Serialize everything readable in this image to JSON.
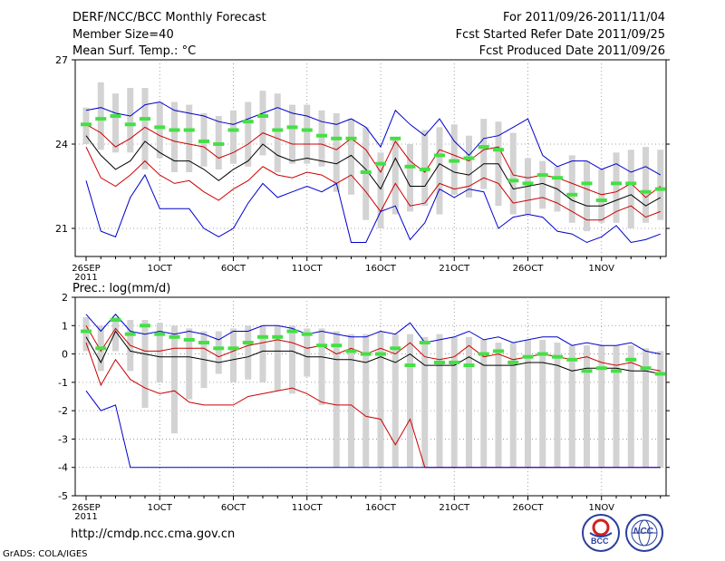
{
  "header": {
    "title": "DERF/NCC/BCC Monthly Forecast",
    "member_size": "Member Size=40",
    "variable": "Mean Surf. Temp.: °C",
    "period": "For 2011/09/26-2011/11/04",
    "fcst_started": "Fcst Started Refer Date 2011/09/25",
    "fcst_produced": "Fcst Produced Date 2011/09/26"
  },
  "footer": {
    "url": "http://cmdp.ncc.cma.gov.cn",
    "grads": "GrADS: COLA/IGES"
  },
  "logos": {
    "bcc": "BCC",
    "ncc": "NCC"
  },
  "colors": {
    "box": "#d3d3d3",
    "median": "#44e044",
    "mean": "#000000",
    "std_band": "#cc0000",
    "extreme": "#0000cc",
    "grid": "#888888"
  },
  "chart_data": [
    {
      "type": "line",
      "panel": "temperature",
      "title": "Mean Surf. Temp.: °C",
      "ylabel": "°C",
      "ylim": [
        20,
        27
      ],
      "yticks": [
        21,
        24,
        27
      ],
      "xlabels": [
        "26SEP",
        "1OCT",
        "6OCT",
        "11OCT",
        "16OCT",
        "21OCT",
        "26OCT",
        "1NOV"
      ],
      "xlabel_year": "2011",
      "days": 40,
      "series": [
        {
          "name": "max",
          "color": "#0000cc",
          "values": [
            25.2,
            25.3,
            25.1,
            25.0,
            25.4,
            25.5,
            25.2,
            25.1,
            25.0,
            24.8,
            24.7,
            24.9,
            25.1,
            25.3,
            25.1,
            25.0,
            24.8,
            24.7,
            24.9,
            24.6,
            23.9,
            25.2,
            24.7,
            24.3,
            24.9,
            24.1,
            23.6,
            24.2,
            24.3,
            24.6,
            24.9,
            23.6,
            23.2,
            23.4,
            23.4,
            23.1,
            23.3,
            23.0,
            23.2,
            22.9
          ]
        },
        {
          "name": "mean_plus_std",
          "color": "#cc0000",
          "values": [
            24.7,
            24.4,
            23.9,
            24.2,
            24.6,
            24.3,
            24.1,
            24.0,
            23.9,
            23.5,
            23.7,
            24.0,
            24.4,
            24.2,
            24.0,
            24.0,
            24.0,
            23.8,
            24.2,
            23.8,
            23.0,
            24.1,
            23.4,
            23.0,
            23.8,
            23.6,
            23.4,
            23.8,
            23.9,
            22.9,
            22.8,
            22.9,
            22.8,
            22.6,
            22.4,
            22.2,
            22.3,
            22.6,
            22.1,
            22.5
          ]
        },
        {
          "name": "mean",
          "color": "#000000",
          "values": [
            24.3,
            23.6,
            23.1,
            23.4,
            24.1,
            23.7,
            23.4,
            23.4,
            23.1,
            22.7,
            23.1,
            23.4,
            24.0,
            23.6,
            23.4,
            23.5,
            23.4,
            23.3,
            23.6,
            23.1,
            22.4,
            23.5,
            22.5,
            22.5,
            23.3,
            23.0,
            22.9,
            23.3,
            23.3,
            22.4,
            22.5,
            22.6,
            22.4,
            22.0,
            21.8,
            21.8,
            22.0,
            22.2,
            21.8,
            22.1
          ]
        },
        {
          "name": "mean_minus_std",
          "color": "#cc0000",
          "values": [
            23.9,
            22.8,
            22.5,
            22.9,
            23.4,
            22.9,
            22.6,
            22.7,
            22.3,
            22.0,
            22.4,
            22.7,
            23.2,
            22.9,
            22.8,
            23.0,
            22.9,
            22.6,
            22.9,
            22.3,
            21.6,
            22.6,
            21.8,
            21.9,
            22.6,
            22.4,
            22.5,
            22.8,
            22.6,
            21.9,
            22.0,
            22.1,
            21.9,
            21.6,
            21.3,
            21.3,
            21.6,
            21.8,
            21.4,
            21.6
          ]
        },
        {
          "name": "min",
          "color": "#0000cc",
          "values": [
            22.7,
            20.9,
            20.7,
            22.1,
            22.9,
            21.7,
            21.7,
            21.7,
            21.0,
            20.7,
            21.0,
            21.9,
            22.6,
            22.1,
            22.3,
            22.5,
            22.3,
            22.6,
            20.5,
            20.5,
            21.6,
            21.8,
            20.6,
            21.2,
            22.4,
            22.1,
            22.4,
            22.3,
            21.0,
            21.4,
            21.5,
            21.4,
            20.9,
            20.8,
            20.5,
            20.7,
            21.1,
            20.5,
            20.6,
            20.8
          ]
        },
        {
          "name": "median",
          "color": "#44e044",
          "values": [
            24.7,
            24.9,
            25.0,
            24.7,
            24.9,
            24.6,
            24.5,
            24.5,
            24.1,
            24.0,
            24.5,
            24.8,
            25.0,
            24.5,
            24.6,
            24.5,
            24.3,
            24.2,
            24.2,
            23.0,
            23.3,
            24.2,
            23.2,
            23.1,
            23.6,
            23.4,
            23.5,
            23.9,
            23.8,
            22.7,
            22.6,
            22.9,
            22.8,
            22.2,
            22.6,
            22.0,
            22.6,
            22.6,
            22.3,
            22.4
          ]
        }
      ],
      "boxes": {
        "upper": [
          25.3,
          26.2,
          25.8,
          26.0,
          26.0,
          25.5,
          25.5,
          25.4,
          25.1,
          25.0,
          25.2,
          25.5,
          25.9,
          25.8,
          25.4,
          25.4,
          25.2,
          25.1,
          24.9,
          24.6,
          23.7,
          24.2,
          24.0,
          24.5,
          24.6,
          24.7,
          24.3,
          24.9,
          24.8,
          24.4,
          23.5,
          23.4,
          23.2,
          23.6,
          23.4,
          23.1,
          23.7,
          23.8,
          23.9,
          23.8
        ],
        "lower": [
          24.0,
          23.8,
          23.7,
          23.7,
          23.1,
          23.5,
          23.0,
          23.0,
          23.2,
          23.1,
          23.3,
          23.2,
          23.6,
          23.0,
          23.3,
          23.3,
          23.2,
          22.3,
          22.2,
          21.3,
          21.0,
          21.5,
          21.6,
          21.8,
          21.5,
          22.2,
          22.1,
          22.4,
          21.8,
          21.5,
          21.5,
          21.7,
          21.6,
          21.2,
          20.9,
          21.2,
          21.2,
          21.0,
          21.2,
          21.3
        ]
      }
    },
    {
      "type": "line",
      "panel": "precipitation",
      "title": "Prec.: log(mm/d)",
      "ylabel": "log(mm/d)",
      "ylim": [
        -5,
        2
      ],
      "yticks": [
        -5,
        -4,
        -3,
        -2,
        -1,
        0,
        1,
        2
      ],
      "xlabels": [
        "26SEP",
        "1OCT",
        "6OCT",
        "11OCT",
        "16OCT",
        "21OCT",
        "26OCT",
        "1NOV"
      ],
      "xlabel_year": "2011",
      "days": 40,
      "series": [
        {
          "name": "max",
          "color": "#0000cc",
          "values": [
            1.4,
            0.8,
            1.4,
            0.8,
            0.7,
            0.8,
            0.7,
            0.8,
            0.7,
            0.5,
            0.8,
            0.8,
            1.0,
            1.0,
            0.9,
            0.7,
            0.8,
            0.7,
            0.6,
            0.6,
            0.8,
            0.7,
            1.1,
            0.4,
            0.5,
            0.6,
            0.8,
            0.5,
            0.6,
            0.4,
            0.5,
            0.6,
            0.6,
            0.3,
            0.4,
            0.3,
            0.3,
            0.4,
            0.1,
            0.0
          ]
        },
        {
          "name": "mean_plus_std",
          "color": "#cc0000",
          "values": [
            1.0,
            0.1,
            0.9,
            0.3,
            0.1,
            0.1,
            0.2,
            0.2,
            0.2,
            -0.1,
            0.1,
            0.3,
            0.4,
            0.5,
            0.4,
            0.2,
            0.3,
            0.0,
            0.2,
            0.0,
            0.2,
            0.0,
            0.4,
            -0.1,
            -0.2,
            -0.1,
            0.3,
            -0.1,
            0.0,
            -0.2,
            -0.1,
            0.0,
            -0.1,
            -0.2,
            -0.1,
            -0.3,
            -0.4,
            -0.3,
            -0.5,
            -0.6
          ]
        },
        {
          "name": "mean",
          "color": "#000000",
          "values": [
            0.6,
            -0.3,
            0.8,
            0.1,
            0.0,
            -0.1,
            -0.1,
            -0.1,
            -0.2,
            -0.3,
            -0.2,
            -0.1,
            0.1,
            0.1,
            0.1,
            -0.1,
            -0.1,
            -0.2,
            -0.2,
            -0.3,
            -0.1,
            -0.3,
            0.0,
            -0.4,
            -0.4,
            -0.4,
            -0.1,
            -0.4,
            -0.4,
            -0.4,
            -0.3,
            -0.3,
            -0.4,
            -0.6,
            -0.5,
            -0.5,
            -0.5,
            -0.6,
            -0.6,
            -0.7
          ]
        },
        {
          "name": "mean_minus_std",
          "color": "#cc0000",
          "values": [
            0.4,
            -1.1,
            -0.2,
            -0.9,
            -1.2,
            -1.4,
            -1.3,
            -1.7,
            -1.8,
            -1.8,
            -1.8,
            -1.5,
            -1.4,
            -1.3,
            -1.2,
            -1.4,
            -1.7,
            -1.8,
            -1.8,
            -2.2,
            -2.3,
            -3.2,
            -2.3,
            -4.0,
            -4.0,
            -4.0,
            -4.0,
            -4.0,
            -4.0,
            -4.0,
            -4.0,
            -4.0,
            -4.0,
            -4.0,
            -4.0,
            -4.0,
            -4.0,
            -4.0,
            -4.0,
            -4.0
          ]
        },
        {
          "name": "min",
          "color": "#0000cc",
          "values": [
            -1.3,
            -2.0,
            -1.8,
            -4.0,
            -4.0,
            -4.0,
            -4.0,
            -4.0,
            -4.0,
            -4.0,
            -4.0,
            -4.0,
            -4.0,
            -4.0,
            -4.0,
            -4.0,
            -4.0,
            -4.0,
            -4.0,
            -4.0,
            -4.0,
            -4.0,
            -4.0,
            -4.0,
            -4.0,
            -4.0,
            -4.0,
            -4.0,
            -4.0,
            -4.0,
            -4.0,
            -4.0,
            -4.0,
            -4.0,
            -4.0,
            -4.0,
            -4.0,
            -4.0,
            -4.0,
            -4.0
          ]
        },
        {
          "name": "median",
          "color": "#44e044",
          "values": [
            0.8,
            0.2,
            1.2,
            0.7,
            1.0,
            0.7,
            0.6,
            0.5,
            0.4,
            0.2,
            0.2,
            0.4,
            0.6,
            0.6,
            0.8,
            0.7,
            0.3,
            0.3,
            0.1,
            0.0,
            0.0,
            0.2,
            -0.4,
            0.4,
            -0.3,
            -0.3,
            -0.4,
            0.0,
            0.1,
            -0.3,
            -0.1,
            0.0,
            -0.1,
            -0.2,
            -0.6,
            -0.5,
            -0.6,
            -0.2,
            -0.5,
            -0.7
          ]
        }
      ],
      "boxes": {
        "upper": [
          1.3,
          1.0,
          1.3,
          1.2,
          1.2,
          1.1,
          1.0,
          0.9,
          0.8,
          0.8,
          0.9,
          1.0,
          1.0,
          1.0,
          1.0,
          0.9,
          0.9,
          0.8,
          0.7,
          0.7,
          0.8,
          0.7,
          0.7,
          0.6,
          0.7,
          0.6,
          0.6,
          0.5,
          0.4,
          0.4,
          0.5,
          0.5,
          0.4,
          0.3,
          0.3,
          0.3,
          0.3,
          0.3,
          0.2,
          0.1
        ],
        "lower": [
          0.1,
          -0.6,
          0.1,
          -0.6,
          -1.9,
          -1.0,
          -2.8,
          -1.6,
          -1.2,
          -0.7,
          -1.0,
          -0.9,
          -1.0,
          -1.3,
          -1.4,
          -0.8,
          -1.8,
          -4.0,
          -4.0,
          -4.0,
          -4.0,
          -4.0,
          -4.0,
          -4.0,
          -4.0,
          -4.0,
          -4.0,
          -4.0,
          -4.0,
          -4.0,
          -4.0,
          -4.0,
          -4.0,
          -4.0,
          -4.0,
          -4.0,
          -4.0,
          -4.0,
          -4.0,
          -4.0
        ]
      }
    }
  ]
}
